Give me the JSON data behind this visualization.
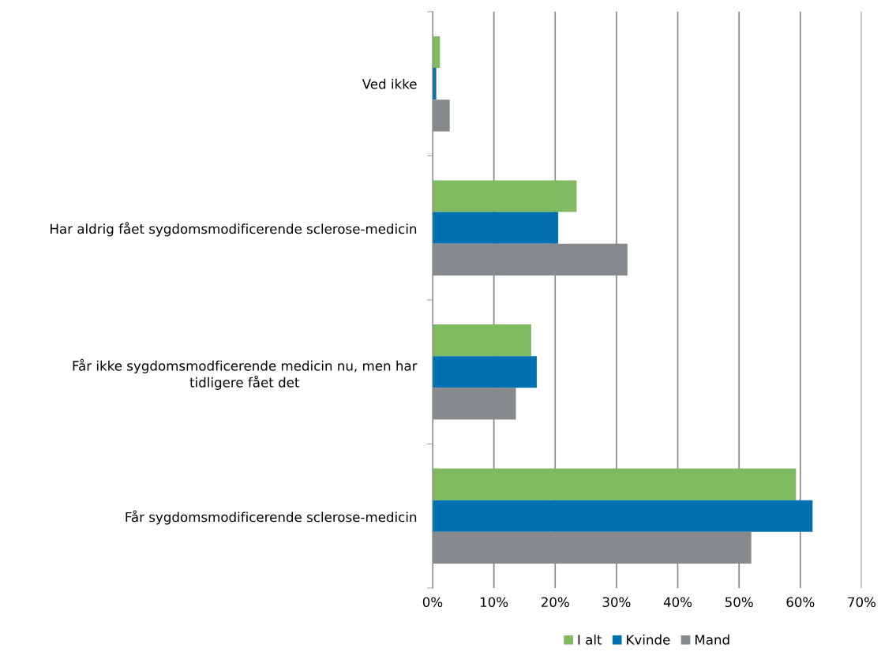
{
  "chart_data": {
    "type": "bar",
    "orientation": "horizontal",
    "categories": [
      "Ved ikke",
      "Har aldrig fået sygdomsmodificerende sclerose-medicin",
      "Får ikke sygdomsmodficerende medicin nu, men har\ntidligere fået det",
      "Får sygdomsmodificerende sclerose-medicin"
    ],
    "series": [
      {
        "name": "I alt",
        "color": "#7fba61",
        "values": [
          1.2,
          23.5,
          16.1,
          59.3
        ]
      },
      {
        "name": "Kvinde",
        "color": "#0070ae",
        "values": [
          0.6,
          20.5,
          17.0,
          62.0
        ]
      },
      {
        "name": "Mand",
        "color": "#878a8c",
        "values": [
          2.8,
          31.8,
          13.6,
          52.0
        ]
      }
    ],
    "xlim": [
      0,
      70
    ],
    "xticks": [
      {
        "value": 0,
        "label": "0%"
      },
      {
        "value": 10,
        "label": "10%"
      },
      {
        "value": 20,
        "label": "20%"
      },
      {
        "value": 30,
        "label": "30%"
      },
      {
        "value": 40,
        "label": "40%"
      },
      {
        "value": 50,
        "label": "50%"
      },
      {
        "value": 60,
        "label": "60%"
      },
      {
        "value": 70,
        "label": "70%"
      }
    ],
    "grid": "x",
    "legend": "bottom"
  }
}
